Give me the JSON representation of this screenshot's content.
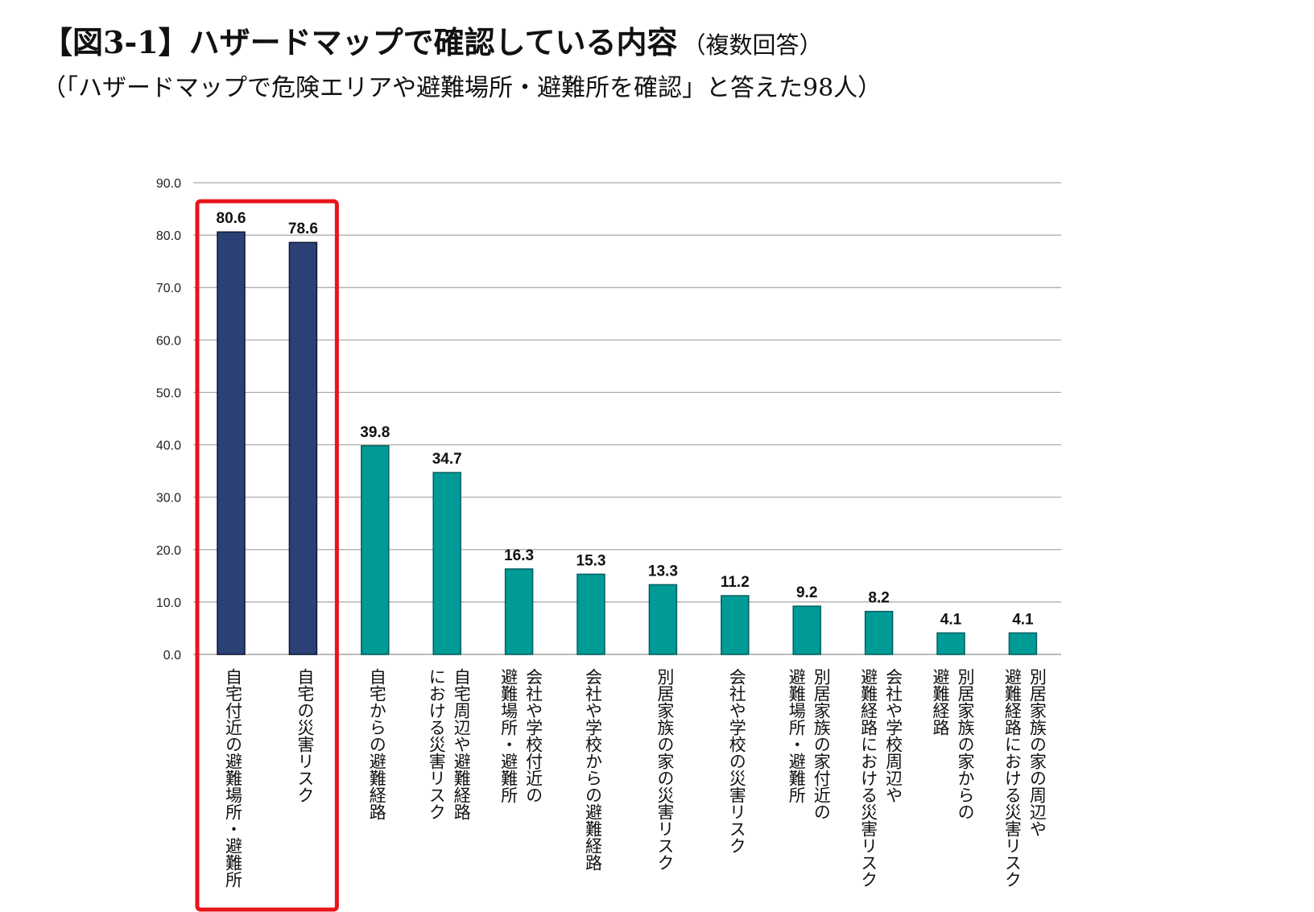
{
  "header": {
    "title": "【図3-1】ハザードマップで確認している内容",
    "title_note": "（複数回答）",
    "subtitle": "（「ハザードマップで危険エリアや避難場所・避難所を確認」と答えた98人）"
  },
  "chart_data": {
    "type": "bar",
    "title": "",
    "xlabel": "",
    "ylabel": "",
    "ylim": [
      0,
      90
    ],
    "yticks": [
      "0.0",
      "10.0",
      "20.0",
      "30.0",
      "40.0",
      "50.0",
      "60.0",
      "70.0",
      "80.0",
      "90.0"
    ],
    "grid": true,
    "categories": [
      "自宅付近の避難場所・避難所",
      "自宅の災害リスク",
      "自宅からの避難経路",
      "自宅周辺や避難経路\nにおける災害リスク",
      "会社や学校付近の\n避難場所・避難所",
      "会社や学校からの避難経路",
      "別居家族の家の災害リスク",
      "会社や学校の災害リスク",
      "別居家族の家付近の\n避難場所・避難所",
      "会社や学校周辺や\n避難経路における災害リスク",
      "別居家族の家からの\n避難経路",
      "別居家族の家の周辺や\n避難経路における災害リスク"
    ],
    "values": [
      80.6,
      78.6,
      39.8,
      34.7,
      16.3,
      15.3,
      13.3,
      11.2,
      9.2,
      8.2,
      4.1,
      4.1
    ],
    "value_labels": [
      "80.6",
      "78.6",
      "39.8",
      "34.7",
      "16.3",
      "15.3",
      "13.3",
      "11.2",
      "9.2",
      "8.2",
      "4.1",
      "4.1"
    ],
    "highlighted_count": 2,
    "colors": {
      "highlight_bar": "#2b4176",
      "bar": "#009a97",
      "highlight_box": "#e8141a",
      "grid": "#a6a6a6"
    }
  }
}
